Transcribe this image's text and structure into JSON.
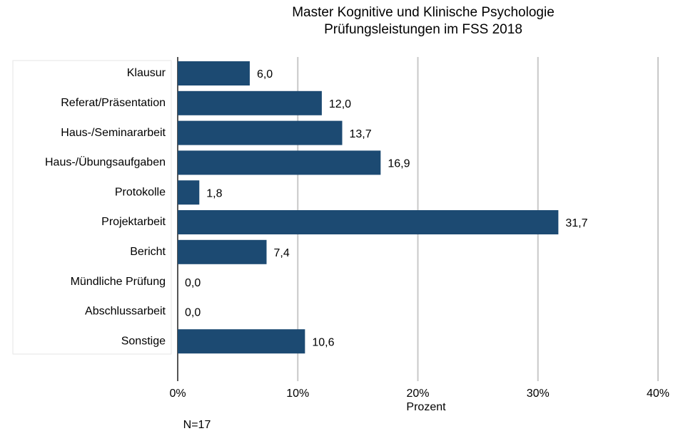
{
  "chart_data": {
    "type": "barh",
    "title": "Master Kognitive und Klinische Psychologie",
    "subtitle": "Prüfungsleistungen im FSS 2018",
    "x_label": "Prozent",
    "note": "N=17",
    "categories": [
      "Klausur",
      "Referat/Präsentation",
      "Haus-/Seminararbeit",
      "Haus-/Übungsaufgaben",
      "Protokolle",
      "Projektarbeit",
      "Bericht",
      "Mündliche Prüfung",
      "Abschlussarbeit",
      "Sonstige"
    ],
    "values": [
      6.0,
      12.0,
      13.7,
      16.9,
      1.8,
      31.7,
      7.4,
      0.0,
      0.0,
      10.6
    ],
    "value_labels": [
      "6,0",
      "12,0",
      "13,7",
      "16,9",
      "1,8",
      "31,7",
      "7,4",
      "0,0",
      "0,0",
      "10,6"
    ],
    "color": "#1c4a72",
    "xlim": [
      0,
      40
    ],
    "xticks": [
      {
        "value": 0,
        "label": "0%"
      },
      {
        "value": 10,
        "label": "10%"
      },
      {
        "value": 20,
        "label": "20%"
      },
      {
        "value": 30,
        "label": "30%"
      },
      {
        "value": 40,
        "label": "40%"
      }
    ],
    "grid": true
  }
}
